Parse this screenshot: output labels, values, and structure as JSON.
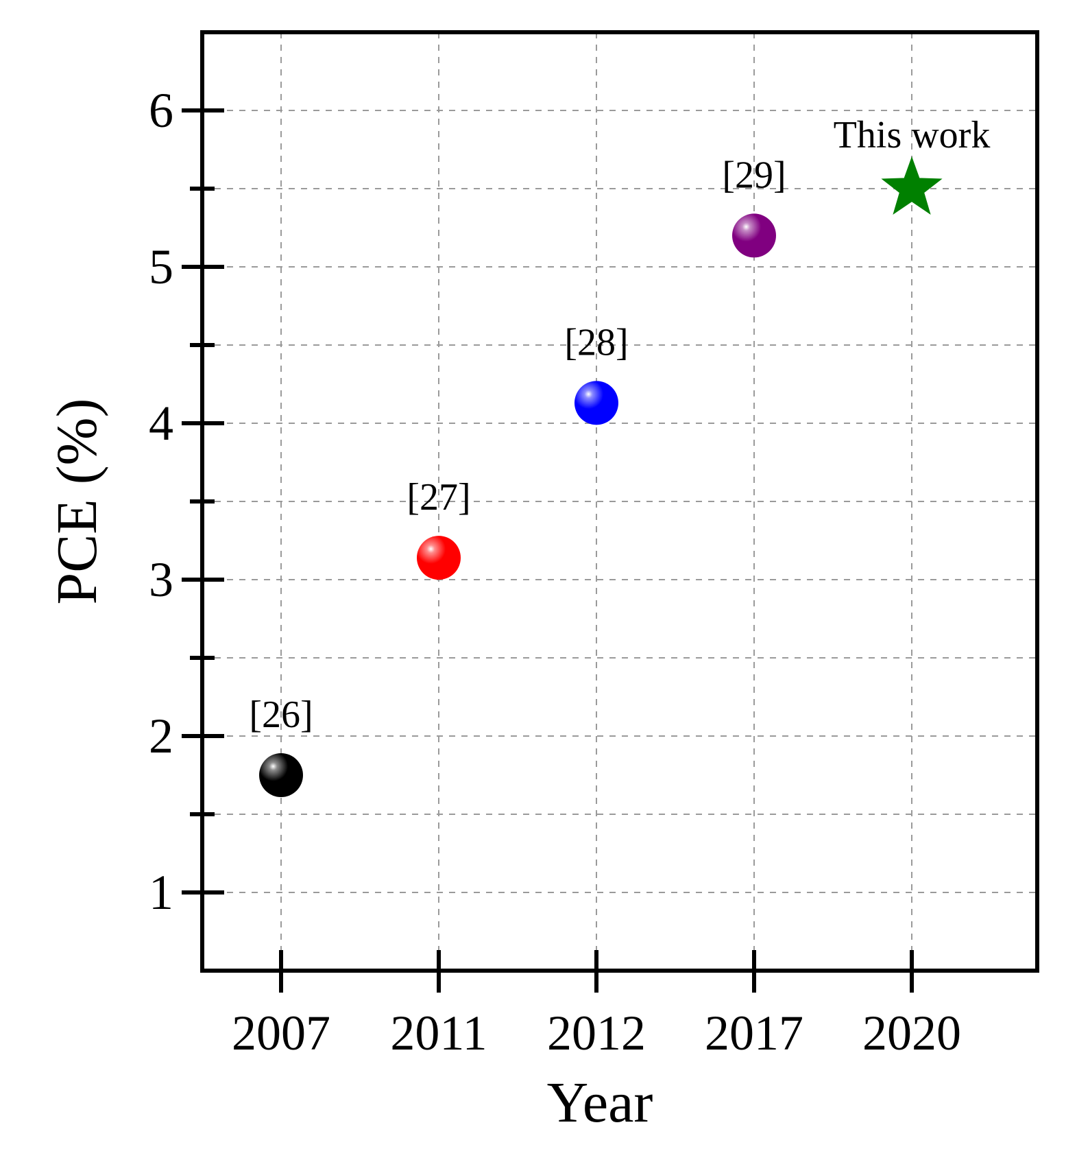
{
  "chart_data": {
    "type": "scatter",
    "title": "",
    "xlabel": "Year",
    "ylabel": "PCE (%)",
    "ylim": [
      0.5,
      6.5
    ],
    "y_major_ticks": [
      1,
      2,
      3,
      4,
      5,
      6
    ],
    "y_minor_ticks": [
      1.5,
      2.5,
      3.5,
      4.5,
      5.5
    ],
    "y_tick_labels": [
      "1",
      "2",
      "3",
      "4",
      "5",
      "6"
    ],
    "categories": [
      "2007",
      "2011",
      "2012",
      "2017",
      "2020"
    ],
    "grid": true,
    "points": [
      {
        "x": "2007",
        "y": 1.75,
        "label": "[26]",
        "color": "#000000",
        "marker": "sphere"
      },
      {
        "x": "2011",
        "y": 3.14,
        "label": "[27]",
        "color": "#ff0000",
        "marker": "sphere"
      },
      {
        "x": "2012",
        "y": 4.13,
        "label": "[28]",
        "color": "#0000ff",
        "marker": "sphere"
      },
      {
        "x": "2017",
        "y": 5.2,
        "label": "[29]",
        "color": "#800080",
        "marker": "sphere"
      },
      {
        "x": "2020",
        "y": 5.5,
        "label": "This work",
        "color": "#008000",
        "marker": "star"
      }
    ]
  }
}
